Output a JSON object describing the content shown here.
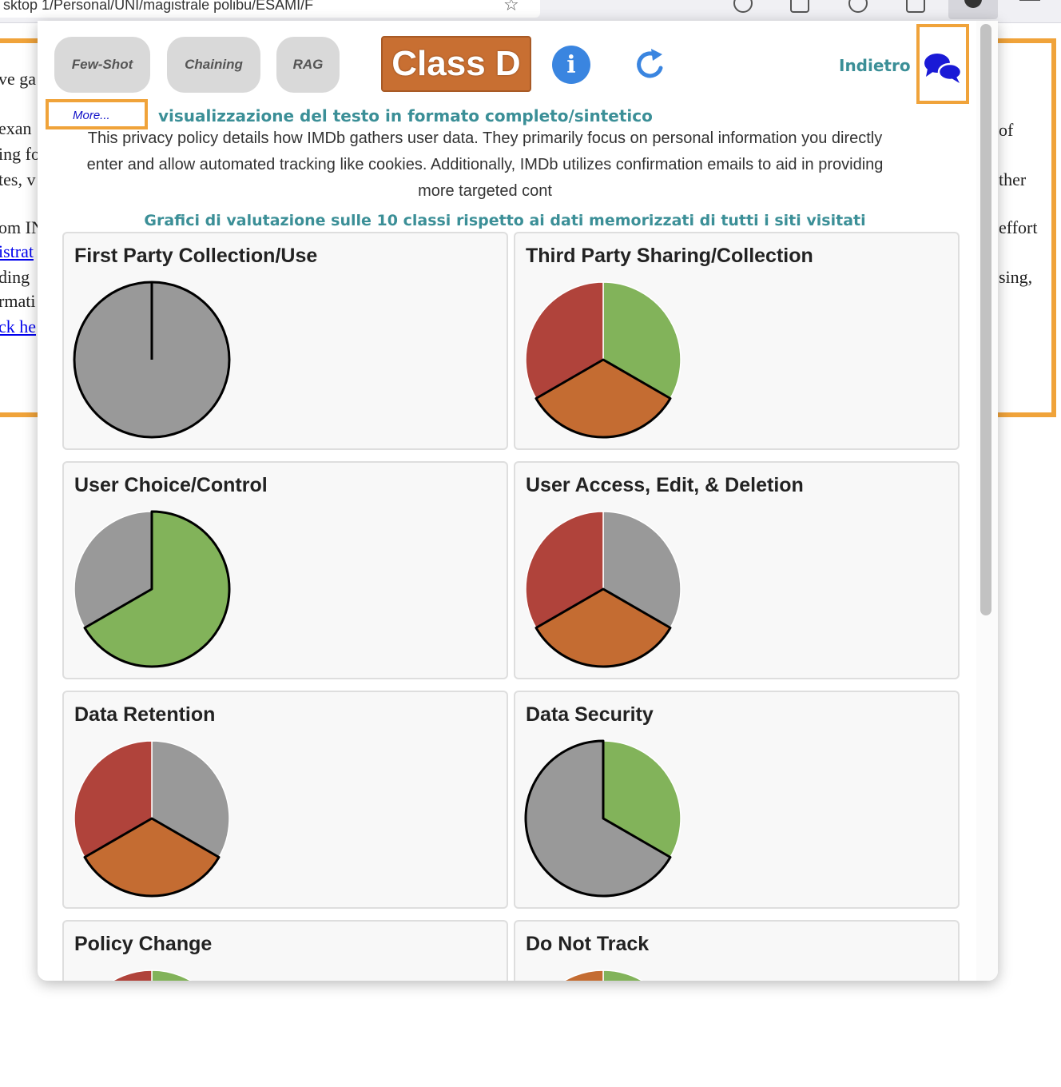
{
  "browser": {
    "url_text": "sktop 1/Personal/UNI/magistrale polibu/ESAMI/F"
  },
  "background_page": {
    "lines": [
      "ve ga",
      "exan",
      "ing fo",
      "tes, v",
      "om IN",
      "istrat",
      "ding",
      "rmati",
      "ck he"
    ],
    "right_lines": [
      "of",
      "ther",
      "effort",
      "sing,"
    ]
  },
  "popup": {
    "buttons": {
      "few_shot": "Few-Shot",
      "chaining": "Chaining",
      "rag": "RAG"
    },
    "class_label": "Class D",
    "info_icon_glyph": "i",
    "back_label": "Indietro",
    "more_link": "More...",
    "toggle_label": "visualizzazione del testo in formato completo/sintetico",
    "summary": "This privacy policy details how IMDb gathers user data. They primarily focus on personal information you directly enter and allow automated tracking like cookies. Additionally, IMDb utilizes confirmation emails to aid in providing more targeted cont",
    "charts_heading": "Grafici di valutazione sulle 10 classi rispetto ai dati memorizzati di tutti i siti visitati"
  },
  "colors": {
    "green": "#82b35a",
    "orange": "#c46c32",
    "red": "#b0433b",
    "gray": "#999999",
    "accent_orange": "#f0a33a",
    "teal": "#3b8f97"
  },
  "chart_data": [
    {
      "type": "pie",
      "title": "First Party Collection/Use",
      "slices": [
        {
          "color": "gray",
          "value": 1,
          "bold": true
        }
      ]
    },
    {
      "type": "pie",
      "title": "Third Party Sharing/Collection",
      "slices": [
        {
          "color": "green",
          "value": 1,
          "bold": false
        },
        {
          "color": "orange",
          "value": 1,
          "bold": true
        },
        {
          "color": "red",
          "value": 1,
          "bold": false
        }
      ]
    },
    {
      "type": "pie",
      "title": "User Choice/Control",
      "slices": [
        {
          "color": "green",
          "value": 2,
          "bold": true
        },
        {
          "color": "gray",
          "value": 1,
          "bold": false
        }
      ]
    },
    {
      "type": "pie",
      "title": "User Access, Edit, & Deletion",
      "slices": [
        {
          "color": "gray",
          "value": 1,
          "bold": false
        },
        {
          "color": "orange",
          "value": 1,
          "bold": true
        },
        {
          "color": "red",
          "value": 1,
          "bold": false
        }
      ]
    },
    {
      "type": "pie",
      "title": "Data Retention",
      "slices": [
        {
          "color": "gray",
          "value": 1,
          "bold": false
        },
        {
          "color": "orange",
          "value": 1,
          "bold": true
        },
        {
          "color": "red",
          "value": 1,
          "bold": false
        }
      ]
    },
    {
      "type": "pie",
      "title": "Data Security",
      "slices": [
        {
          "color": "green",
          "value": 1,
          "bold": false
        },
        {
          "color": "gray",
          "value": 2,
          "bold": true
        }
      ]
    },
    {
      "type": "pie",
      "title": "Policy Change",
      "slices": [
        {
          "color": "green",
          "value": 1,
          "bold": false
        },
        {
          "color": "red",
          "value": 1,
          "bold": false
        }
      ]
    },
    {
      "type": "pie",
      "title": "Do Not Track",
      "slices": [
        {
          "color": "green",
          "value": 1,
          "bold": false
        },
        {
          "color": "orange",
          "value": 1,
          "bold": false
        }
      ]
    }
  ]
}
